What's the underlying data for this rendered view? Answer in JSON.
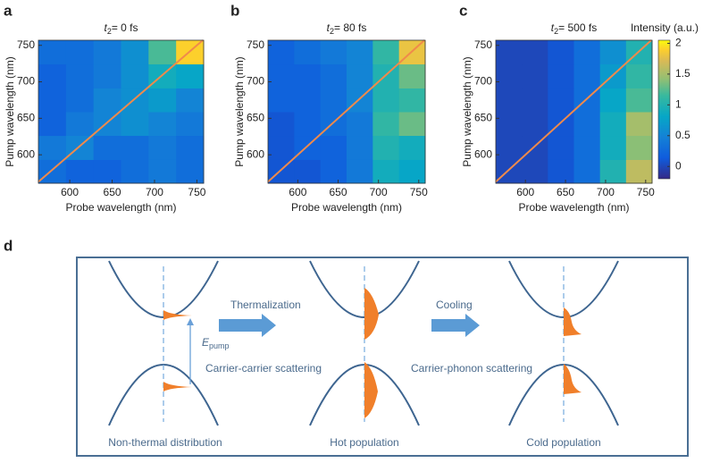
{
  "chart_data": [
    {
      "type": "heatmap",
      "panel_label": "a",
      "title_var": "t",
      "title_sub": "2",
      "title": "= 0 fs",
      "xlabel": "Probe wavelength (nm)",
      "ylabel": "Pump wavelength (nm)",
      "x": [
        579,
        612,
        644,
        677,
        709,
        742
      ],
      "y": [
        577,
        610,
        643,
        675,
        708,
        741
      ],
      "z": [
        [
          0.3,
          0.2,
          0.2,
          0.3,
          0.4,
          0.3
        ],
        [
          0.4,
          0.5,
          0.3,
          0.3,
          0.4,
          0.3
        ],
        [
          0.2,
          0.4,
          0.5,
          0.6,
          0.5,
          0.4
        ],
        [
          0.2,
          0.3,
          0.5,
          0.6,
          0.7,
          0.5
        ],
        [
          0.2,
          0.3,
          0.4,
          0.6,
          0.9,
          0.8
        ],
        [
          0.3,
          0.3,
          0.4,
          0.6,
          1.2,
          1.9
        ]
      ],
      "xlim": [
        563,
        758
      ],
      "ylim": [
        561,
        757
      ],
      "xticks": [
        600,
        650,
        700,
        750
      ],
      "yticks": [
        600,
        650,
        700,
        750
      ],
      "line_color": "#f08a4b"
    },
    {
      "type": "heatmap",
      "panel_label": "b",
      "title_var": "t",
      "title_sub": "2",
      "title": "= 80 fs",
      "xlabel": "Probe wavelength (nm)",
      "ylabel": "Pump wavelength (nm)",
      "x": [
        579,
        612,
        644,
        677,
        709,
        742
      ],
      "y": [
        577,
        610,
        643,
        675,
        708,
        741
      ],
      "z": [
        [
          0.1,
          0.1,
          0.2,
          0.4,
          0.9,
          0.8
        ],
        [
          0.1,
          0.2,
          0.2,
          0.4,
          1.0,
          0.9
        ],
        [
          0.1,
          0.2,
          0.3,
          0.4,
          1.1,
          1.3
        ],
        [
          0.2,
          0.2,
          0.3,
          0.5,
          1.0,
          1.1
        ],
        [
          0.2,
          0.2,
          0.3,
          0.5,
          1.0,
          1.3
        ],
        [
          0.2,
          0.3,
          0.4,
          0.5,
          1.1,
          1.8
        ]
      ],
      "xlim": [
        563,
        758
      ],
      "ylim": [
        561,
        757
      ],
      "xticks": [
        600,
        650,
        700,
        750
      ],
      "yticks": [
        600,
        650,
        700,
        750
      ],
      "line_color": "#f08a4b"
    },
    {
      "type": "heatmap",
      "panel_label": "c",
      "title_var": "t",
      "title_sub": "2",
      "title": "= 500 fs",
      "xlabel": "Probe wavelength (nm)",
      "ylabel": "Pump wavelength (nm)",
      "x": [
        579,
        612,
        644,
        677,
        709,
        742
      ],
      "y": [
        577,
        610,
        643,
        675,
        708,
        741
      ],
      "z": [
        [
          0.0,
          0.0,
          0.1,
          0.3,
          1.0,
          1.6
        ],
        [
          0.0,
          0.0,
          0.1,
          0.3,
          0.9,
          1.4
        ],
        [
          0.0,
          0.0,
          0.1,
          0.3,
          0.9,
          1.5
        ],
        [
          0.0,
          0.0,
          0.1,
          0.3,
          0.8,
          1.2
        ],
        [
          0.0,
          0.0,
          0.1,
          0.3,
          0.7,
          1.1
        ],
        [
          0.0,
          0.0,
          0.1,
          0.3,
          0.6,
          1.0
        ]
      ],
      "xlim": [
        563,
        758
      ],
      "ylim": [
        561,
        757
      ],
      "xticks": [
        600,
        650,
        700,
        750
      ],
      "yticks": [
        600,
        650,
        700,
        750
      ],
      "line_color": "#f08a4b",
      "colorbar": {
        "label": "Intensity (a.u.)",
        "ylim": [
          -0.2,
          2.05
        ],
        "yticks": [
          0,
          0.5,
          1,
          1.5,
          2
        ]
      }
    }
  ],
  "diagram": {
    "panel_label": "d",
    "arrow1": "Thermalization",
    "arrow2": "Cooling",
    "energy_var": "E",
    "energy_sub": "pump",
    "process1": "Carrier-carrier scattering",
    "process2": "Carrier-phonon scattering",
    "state1": "Non-thermal distribution",
    "state2": "Hot population",
    "state3": "Cold population"
  }
}
